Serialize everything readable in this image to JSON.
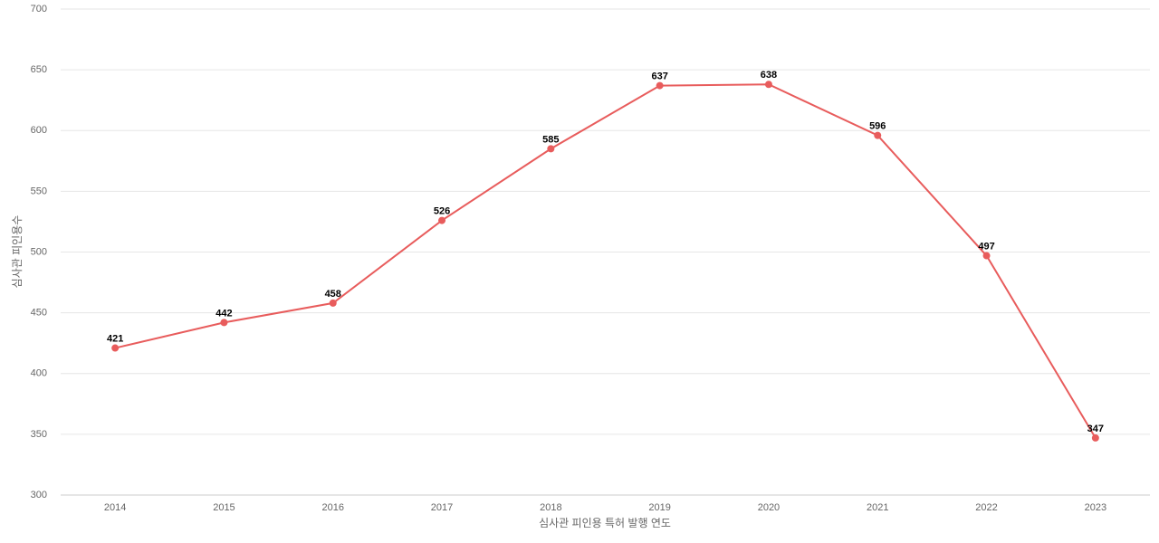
{
  "chart_data": {
    "type": "line",
    "x_label": "심사관 피인용 특허 발행 연도",
    "y_label": "심사관 피인용수",
    "categories": [
      "2014",
      "2015",
      "2016",
      "2017",
      "2018",
      "2019",
      "2020",
      "2021",
      "2022",
      "2023"
    ],
    "series": [
      {
        "name": "심사관 피인용수",
        "color": "#e85c5c",
        "values": [
          421,
          442,
          458,
          526,
          585,
          637,
          638,
          596,
          497,
          347
        ]
      }
    ],
    "ylim": [
      300,
      700
    ],
    "yticks": [
      300,
      350,
      400,
      450,
      500,
      550,
      600,
      650,
      700
    ],
    "grid": true
  }
}
